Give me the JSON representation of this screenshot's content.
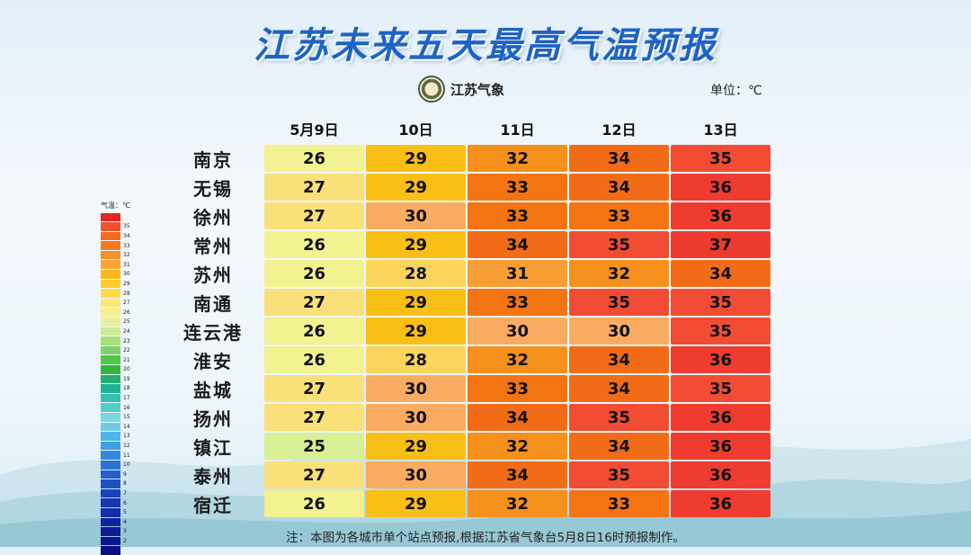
{
  "title": "江苏未来五天最高气温预报",
  "logo_text": "江苏气象",
  "unit": "单位：℃",
  "note": "注：本图为各城市单个站点预报,根据江苏省气象台5月8日16时预报制作。",
  "legend": {
    "title": "气温：℃",
    "levels": [
      "",
      "35",
      "34",
      "33",
      "32",
      "31",
      "30",
      "29",
      "28",
      "27",
      "26",
      "25",
      "24",
      "23",
      "22",
      "21",
      "20",
      "19",
      "18",
      "17",
      "16",
      "15",
      "14",
      "13",
      "12",
      "11",
      "10",
      "9",
      "8",
      "7",
      "6",
      "5",
      "4",
      "3",
      "2",
      ""
    ],
    "colors": [
      "#e8261e",
      "#f0502a",
      "#f26a1c",
      "#f47a20",
      "#f6902a",
      "#f8a636",
      "#f9b61e",
      "#facb2a",
      "#fbdc4c",
      "#fbe870",
      "#f8f08a",
      "#e6f2a0",
      "#cdeb96",
      "#a8e07a",
      "#7dd466",
      "#52c64a",
      "#2fba3a",
      "#22b06a",
      "#20b290",
      "#34c0b0",
      "#54cec8",
      "#7ad6e0",
      "#6ccce8",
      "#4cb6ea",
      "#3ca0e4",
      "#3288dc",
      "#2a72d4",
      "#2460cc",
      "#1e50c4",
      "#1a42bc",
      "#1636b2",
      "#142caa",
      "#1222a0",
      "#101a96",
      "#0e148c",
      "#0c0f82"
    ]
  },
  "chart_data": {
    "type": "heatmap",
    "title": "江苏未来五天最高气温预报",
    "unit": "℃",
    "x": [
      "5月9日",
      "10日",
      "11日",
      "12日",
      "13日"
    ],
    "y": [
      "南京",
      "无锡",
      "徐州",
      "常州",
      "苏州",
      "南通",
      "连云港",
      "淮安",
      "盐城",
      "扬州",
      "镇江",
      "泰州",
      "宿迁"
    ],
    "values": [
      [
        26,
        29,
        32,
        34,
        35
      ],
      [
        27,
        29,
        33,
        34,
        36
      ],
      [
        27,
        30,
        33,
        33,
        36
      ],
      [
        26,
        29,
        34,
        35,
        37
      ],
      [
        26,
        28,
        31,
        32,
        34
      ],
      [
        27,
        29,
        33,
        35,
        35
      ],
      [
        26,
        29,
        30,
        30,
        35
      ],
      [
        26,
        28,
        32,
        34,
        36
      ],
      [
        27,
        30,
        33,
        34,
        35
      ],
      [
        27,
        30,
        34,
        35,
        36
      ],
      [
        25,
        29,
        32,
        34,
        36
      ],
      [
        27,
        30,
        34,
        35,
        36
      ],
      [
        26,
        29,
        32,
        33,
        36
      ]
    ],
    "color_scale": {
      "25": "#d8ef96",
      "26": "#f2f291",
      "27": "#fae079",
      "28": "#fbd45c",
      "29": "#fabf16",
      "30": "#f9ac61",
      "31": "#f89e34",
      "32": "#f6901c",
      "33": "#f47414",
      "34": "#f26c18",
      "35": "#f24c34",
      "36": "#f03c30",
      "37": "#ee3a2e"
    }
  }
}
